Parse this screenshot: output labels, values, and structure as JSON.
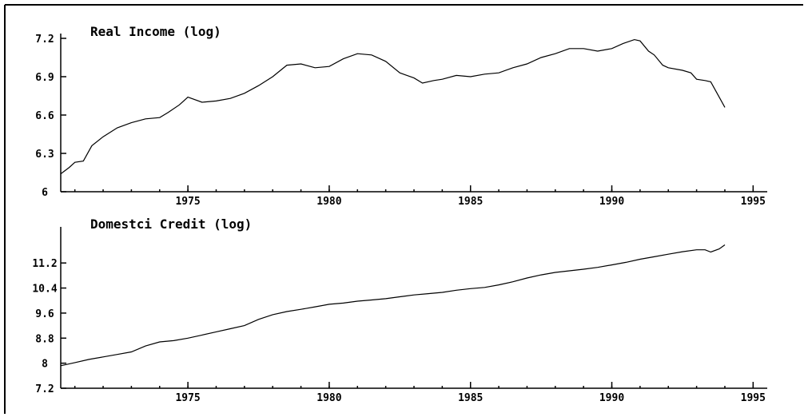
{
  "chart_data": [
    {
      "type": "line",
      "title": "Real Income (log)",
      "xlim": [
        1970.5,
        1995.5
      ],
      "ylim": [
        6.0,
        7.2
      ],
      "yticks": [
        "7.2",
        "6.9",
        "6.6",
        "6.3",
        "6"
      ],
      "ytick_values": [
        7.2,
        6.9,
        6.6,
        6.3,
        6.0
      ],
      "xticks": [
        "1975",
        "1980",
        "1985",
        "1990",
        "1995"
      ],
      "xtick_values": [
        1975,
        1980,
        1985,
        1990,
        1995
      ],
      "grid": false,
      "series": [
        {
          "x": [
            1970.5,
            1970.8,
            1971.0,
            1971.3,
            1971.6,
            1972.0,
            1972.5,
            1973.0,
            1973.5,
            1974.0,
            1974.3,
            1974.7,
            1975.0,
            1975.5,
            1976.0,
            1976.5,
            1977.0,
            1977.5,
            1978.0,
            1978.5,
            1979.0,
            1979.5,
            1980.0,
            1980.5,
            1981.0,
            1981.5,
            1982.0,
            1982.5,
            1983.0,
            1983.3,
            1983.7,
            1984.0,
            1984.5,
            1985.0,
            1985.5,
            1986.0,
            1986.5,
            1987.0,
            1987.5,
            1988.0,
            1988.5,
            1989.0,
            1989.5,
            1990.0,
            1990.4,
            1990.8,
            1991.0,
            1991.3,
            1991.5,
            1991.8,
            1992.0,
            1992.5,
            1992.8,
            1993.0,
            1993.3,
            1993.5,
            1993.8,
            1994.0
          ],
          "y": [
            6.14,
            6.19,
            6.23,
            6.24,
            6.36,
            6.43,
            6.5,
            6.54,
            6.57,
            6.58,
            6.62,
            6.68,
            6.74,
            6.7,
            6.71,
            6.73,
            6.77,
            6.83,
            6.9,
            6.99,
            7.0,
            6.97,
            6.98,
            7.04,
            7.08,
            7.07,
            7.02,
            6.93,
            6.89,
            6.85,
            6.87,
            6.88,
            6.91,
            6.9,
            6.92,
            6.93,
            6.97,
            7.0,
            7.05,
            7.08,
            7.12,
            7.12,
            7.1,
            7.12,
            7.16,
            7.19,
            7.18,
            7.1,
            7.07,
            6.99,
            6.97,
            6.95,
            6.93,
            6.88,
            6.87,
            6.86,
            6.74,
            6.66
          ]
        }
      ]
    },
    {
      "type": "line",
      "title": "Domestci Credit (log)",
      "xlim": [
        1970.5,
        1995.5
      ],
      "ylim": [
        7.2,
        12.2
      ],
      "yticks": [
        "11.2",
        "10.4",
        "9.6",
        "8.8",
        "8",
        "7.2"
      ],
      "ytick_values": [
        11.2,
        10.4,
        9.6,
        8.8,
        8.0,
        7.2
      ],
      "xticks": [
        "1975",
        "1980",
        "1985",
        "1990",
        "1995"
      ],
      "xtick_values": [
        1975,
        1980,
        1985,
        1990,
        1995
      ],
      "grid": false,
      "series": [
        {
          "x": [
            1970.5,
            1971.0,
            1971.5,
            1972.0,
            1972.5,
            1973.0,
            1973.5,
            1974.0,
            1974.5,
            1975.0,
            1975.5,
            1976.0,
            1976.5,
            1977.0,
            1977.5,
            1978.0,
            1978.5,
            1979.0,
            1979.5,
            1980.0,
            1980.5,
            1981.0,
            1981.5,
            1982.0,
            1982.5,
            1983.0,
            1983.5,
            1984.0,
            1984.5,
            1985.0,
            1985.5,
            1986.0,
            1986.5,
            1987.0,
            1987.5,
            1988.0,
            1988.5,
            1989.0,
            1989.5,
            1990.0,
            1990.5,
            1991.0,
            1991.5,
            1992.0,
            1992.5,
            1993.0,
            1993.3,
            1993.5,
            1993.8,
            1994.0
          ],
          "y": [
            7.92,
            8.02,
            8.12,
            8.2,
            8.28,
            8.36,
            8.55,
            8.68,
            8.72,
            8.8,
            8.9,
            9.0,
            9.1,
            9.2,
            9.4,
            9.55,
            9.65,
            9.72,
            9.8,
            9.88,
            9.92,
            9.98,
            10.02,
            10.06,
            10.12,
            10.18,
            10.22,
            10.26,
            10.33,
            10.38,
            10.42,
            10.5,
            10.6,
            10.72,
            10.82,
            10.9,
            10.95,
            11.0,
            11.06,
            11.14,
            11.22,
            11.32,
            11.4,
            11.48,
            11.56,
            11.62,
            11.62,
            11.55,
            11.65,
            11.78
          ]
        }
      ]
    }
  ]
}
